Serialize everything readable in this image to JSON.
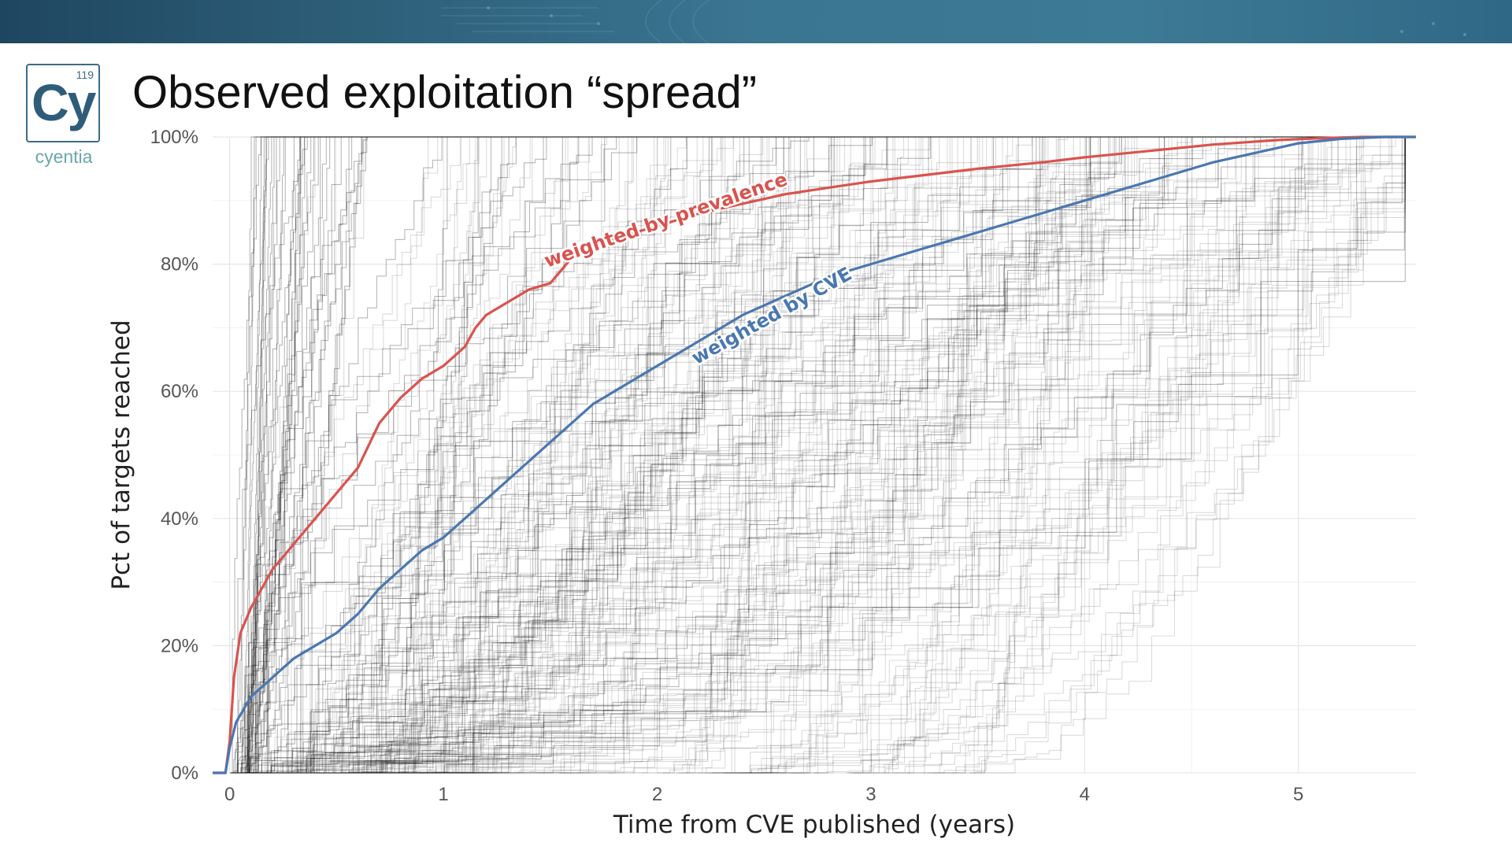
{
  "slide": {
    "title": "Observed exploitation “spread”",
    "logo": {
      "symbol": "Cy",
      "number": "119",
      "brand": "cyentia"
    }
  },
  "colors": {
    "banner": "#2f6886",
    "prevalence": "#d9534f",
    "cve": "#4a77b0",
    "background_lines": "#000000",
    "grid": "#e6e6e6"
  },
  "chart_data": {
    "type": "line",
    "title": "",
    "xlabel": "Time from CVE published (years)",
    "ylabel": "Pct of targets reached",
    "xlim": [
      -0.08,
      5.55
    ],
    "ylim": [
      0,
      100
    ],
    "xticks": [
      0,
      1,
      2,
      3,
      4,
      5
    ],
    "yticks": [
      0,
      20,
      40,
      60,
      80,
      100
    ],
    "xtick_labels": [
      "0",
      "1",
      "2",
      "3",
      "4",
      "5"
    ],
    "ytick_labels": [
      "0%",
      "20%",
      "40%",
      "60%",
      "80%",
      "100%"
    ],
    "grid": true,
    "background_series_note_count": 300,
    "series": [
      {
        "name": "weighted by prevalence",
        "color": "#d9534f",
        "x": [
          -0.08,
          -0.02,
          0.0,
          0.02,
          0.05,
          0.1,
          0.15,
          0.2,
          0.25,
          0.3,
          0.4,
          0.5,
          0.6,
          0.7,
          0.8,
          0.9,
          1.0,
          1.1,
          1.15,
          1.2,
          1.3,
          1.4,
          1.5,
          1.55,
          1.6,
          1.8,
          2.0,
          2.2,
          2.4,
          2.6,
          2.8,
          3.0,
          3.2,
          3.5,
          3.8,
          4.0,
          4.3,
          4.6,
          4.9,
          5.1,
          5.3,
          5.55
        ],
        "y": [
          0,
          0,
          5,
          15,
          22,
          26,
          29,
          32,
          34,
          36,
          40,
          44,
          48,
          55,
          59,
          62,
          64,
          67,
          70,
          72,
          74,
          76,
          77,
          79,
          81,
          84,
          86,
          88,
          89.5,
          91,
          92,
          93,
          93.8,
          95,
          96,
          96.8,
          97.8,
          98.8,
          99.5,
          99.8,
          100,
          100
        ]
      },
      {
        "name": "weighted by CVE",
        "color": "#4a77b0",
        "x": [
          -0.08,
          -0.02,
          0.0,
          0.03,
          0.1,
          0.2,
          0.3,
          0.4,
          0.5,
          0.6,
          0.7,
          0.8,
          0.9,
          1.0,
          1.1,
          1.2,
          1.3,
          1.4,
          1.5,
          1.6,
          1.7,
          1.8,
          1.9,
          2.0,
          2.2,
          2.4,
          2.6,
          2.8,
          3.0,
          3.2,
          3.4,
          3.6,
          3.8,
          4.0,
          4.2,
          4.4,
          4.6,
          4.8,
          5.0,
          5.2,
          5.4,
          5.55
        ],
        "y": [
          0,
          0,
          4,
          8,
          12,
          15,
          18,
          20,
          22,
          25,
          29,
          32,
          35,
          37,
          40,
          43,
          46,
          49,
          52,
          55,
          58,
          60,
          62,
          64,
          68,
          72,
          75,
          78,
          80,
          82,
          84,
          86,
          88,
          90,
          92,
          94,
          96,
          97.5,
          99,
          99.7,
          100,
          100
        ]
      }
    ],
    "annotations": [
      {
        "text": "weighted by prevalence",
        "series": "weighted by prevalence",
        "x": 2.05,
        "y": 86,
        "angle": -19
      },
      {
        "text": "weighted by CVE",
        "series": "weighted by CVE",
        "x": 2.55,
        "y": 71,
        "angle": -29
      }
    ]
  }
}
